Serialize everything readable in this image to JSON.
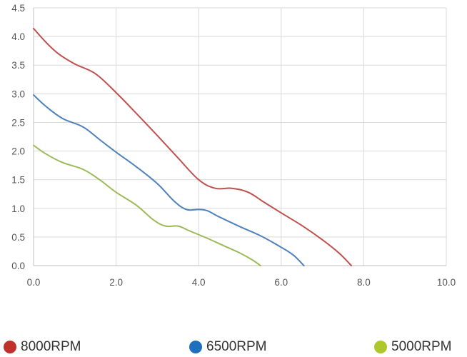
{
  "chart_data": {
    "type": "line",
    "title": "",
    "xlabel": "",
    "ylabel": "",
    "xlim": [
      0,
      10
    ],
    "ylim": [
      0,
      4.5
    ],
    "x_ticks": [
      0,
      2,
      4,
      6,
      8,
      10
    ],
    "x_tick_labels": [
      "0.0",
      "2.0",
      "4.0",
      "6.0",
      "8.0",
      "10.0"
    ],
    "y_ticks": [
      0,
      0.5,
      1,
      1.5,
      2,
      2.5,
      3,
      3.5,
      4,
      4.5
    ],
    "y_tick_labels": [
      "0.0",
      "0.5",
      "1.0",
      "1.5",
      "2.0",
      "2.5",
      "3.0",
      "3.5",
      "4.0",
      "4.5"
    ],
    "grid": true,
    "legend_position": "bottom",
    "series": [
      {
        "name": "8000RPM",
        "color": "#c0504d",
        "dot_color": "#c0312a",
        "x": [
          0,
          0.3,
          0.6,
          1.0,
          1.5,
          2.0,
          2.5,
          3.0,
          3.5,
          4.0,
          4.4,
          4.8,
          5.2,
          5.6,
          6.0,
          6.5,
          7.0,
          7.4,
          7.7
        ],
        "y": [
          4.14,
          3.9,
          3.7,
          3.52,
          3.35,
          3.02,
          2.65,
          2.27,
          1.88,
          1.5,
          1.35,
          1.35,
          1.28,
          1.1,
          0.92,
          0.7,
          0.45,
          0.22,
          0.0
        ]
      },
      {
        "name": "6500RPM",
        "color": "#4f81bd",
        "dot_color": "#1f6fbf",
        "x": [
          0,
          0.3,
          0.7,
          1.2,
          1.6,
          2.0,
          2.5,
          3.0,
          3.4,
          3.7,
          4.0,
          4.2,
          4.5,
          5.0,
          5.5,
          6.0,
          6.3,
          6.55
        ],
        "y": [
          2.98,
          2.78,
          2.57,
          2.42,
          2.2,
          1.98,
          1.72,
          1.43,
          1.13,
          0.98,
          0.98,
          0.96,
          0.85,
          0.68,
          0.52,
          0.32,
          0.18,
          0.0
        ]
      },
      {
        "name": "5000RPM",
        "color": "#9bbb59",
        "dot_color": "#aec82c",
        "x": [
          0,
          0.3,
          0.7,
          1.2,
          1.6,
          2.0,
          2.5,
          2.9,
          3.2,
          3.5,
          3.8,
          4.2,
          4.6,
          5.0,
          5.3,
          5.5
        ],
        "y": [
          2.1,
          1.95,
          1.8,
          1.68,
          1.5,
          1.28,
          1.05,
          0.8,
          0.69,
          0.69,
          0.6,
          0.48,
          0.35,
          0.22,
          0.1,
          0.0
        ]
      }
    ]
  }
}
